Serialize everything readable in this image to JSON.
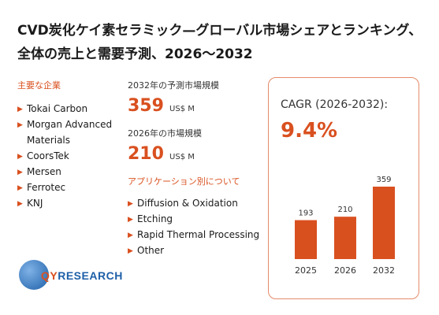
{
  "title": "CVD炭化ケイ素セラミック—グローバル市場シェアとランキング、全体の売上と需要予測、2026〜2032",
  "companies": {
    "heading": "主要な企業",
    "items": [
      "Tokai Carbon",
      "Morgan Advanced Materials",
      "CoorsTek",
      "Mersen",
      "Ferrotec",
      "KNJ"
    ]
  },
  "metrics": {
    "forecast_label": "2032年の予測市場規模",
    "forecast_value": "359",
    "forecast_unit": "US$ M",
    "current_label": "2026年の市場規模",
    "current_value": "210",
    "current_unit": "US$ M"
  },
  "applications": {
    "heading": "アプリケーション別について",
    "items": [
      "Diffusion & Oxidation",
      "Etching",
      "Rapid Thermal Processing",
      "Other"
    ]
  },
  "logo": {
    "q": "QY",
    "rest": "RESEARCH"
  },
  "cagr": {
    "label": "CAGR (2026-2032):",
    "value": "9.4%"
  },
  "colors": {
    "accent": "#d9501f",
    "bar": "#d9501f",
    "border": "#e58a6a"
  },
  "chart_data": {
    "type": "bar",
    "categories": [
      "2025",
      "2026",
      "2032"
    ],
    "values": [
      193,
      210,
      359
    ],
    "ylim": [
      0,
      359
    ],
    "grid": false
  }
}
